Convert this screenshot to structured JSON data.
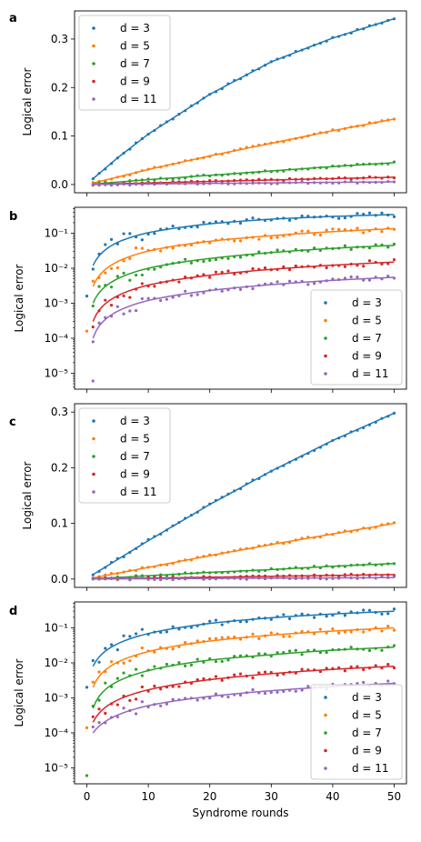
{
  "chart_data": [
    {
      "panel": "a",
      "type": "scatter",
      "xlabel": "",
      "ylabel": "Logical error",
      "yscale": "linear",
      "xlim": [
        -2,
        52
      ],
      "ylim": [
        -0.017,
        0.358
      ],
      "yticks": [
        0.0,
        0.1,
        0.2,
        0.3
      ],
      "yticklabels": [
        "0.0",
        "0.1",
        "0.2",
        "0.3"
      ],
      "xticks": [
        0,
        10,
        20,
        30,
        40,
        50
      ],
      "xticklabels": [],
      "legend_loc": "upper-left",
      "points_shown": "markers with fitted curves",
      "series": [
        {
          "name": "d = 3",
          "color": "#1f77b4",
          "fit": {
            "x": [
              1,
              5,
              10,
              20,
              30,
              40,
              50
            ],
            "y": [
              0.012,
              0.055,
              0.104,
              0.186,
              0.253,
              0.302,
              0.342
            ]
          }
        },
        {
          "name": "d = 5",
          "color": "#ff7f0e",
          "fit": {
            "x": [
              1,
              10,
              20,
              30,
              40,
              50
            ],
            "y": [
              0.003,
              0.031,
              0.059,
              0.085,
              0.111,
              0.135
            ]
          }
        },
        {
          "name": "d = 7",
          "color": "#2ca02c",
          "fit": {
            "x": [
              1,
              10,
              20,
              30,
              40,
              50
            ],
            "y": [
              0.001,
              0.01,
              0.019,
              0.028,
              0.037,
              0.045
            ]
          }
        },
        {
          "name": "d = 9",
          "color": "#d62728",
          "fit": {
            "x": [
              1,
              10,
              20,
              30,
              40,
              50
            ],
            "y": [
              0.0003,
              0.0033,
              0.0063,
              0.0093,
              0.0122,
              0.015
            ]
          }
        },
        {
          "name": "d = 11",
          "color": "#9467bd",
          "fit": {
            "x": [
              1,
              10,
              20,
              30,
              40,
              50
            ],
            "y": [
              0.0001,
              0.0012,
              0.0023,
              0.0034,
              0.0045,
              0.0055
            ]
          }
        }
      ]
    },
    {
      "panel": "b",
      "type": "scatter",
      "xlabel": "",
      "ylabel": "Logical error",
      "yscale": "log",
      "xlim": [
        -2,
        52
      ],
      "ylim": [
        3.5e-06,
        0.55
      ],
      "yticks": [
        1e-05,
        0.0001,
        0.001,
        0.01,
        0.1
      ],
      "yticklabels": [
        "10⁻⁵",
        "10⁻⁴",
        "10⁻³",
        "10⁻²",
        "10⁻¹"
      ],
      "xticks": [
        0,
        10,
        20,
        30,
        40,
        50
      ],
      "xticklabels": [],
      "legend_loc": "lower-right",
      "points_shown": "markers with fitted curves",
      "series": [
        {
          "name": "d = 3",
          "color": "#1f77b4",
          "fit": {
            "x": [
              1,
              5,
              10,
              20,
              30,
              40,
              50
            ],
            "y": [
              0.012,
              0.055,
              0.104,
              0.186,
              0.253,
              0.302,
              0.342
            ]
          },
          "outliers": [
            {
              "x": 0,
              "y": 0.0016
            }
          ]
        },
        {
          "name": "d = 5",
          "color": "#ff7f0e",
          "fit": {
            "x": [
              1,
              10,
              20,
              30,
              40,
              50
            ],
            "y": [
              0.003,
              0.031,
              0.059,
              0.085,
              0.111,
              0.135
            ]
          },
          "outliers": [
            {
              "x": 0,
              "y": 0.00016
            }
          ]
        },
        {
          "name": "d = 7",
          "color": "#2ca02c",
          "fit": {
            "x": [
              1,
              10,
              20,
              30,
              40,
              50
            ],
            "y": [
              0.001,
              0.01,
              0.019,
              0.028,
              0.037,
              0.045
            ]
          }
        },
        {
          "name": "d = 9",
          "color": "#d62728",
          "fit": {
            "x": [
              1,
              10,
              20,
              30,
              40,
              50
            ],
            "y": [
              0.0003,
              0.0033,
              0.0063,
              0.0093,
              0.0122,
              0.015
            ]
          }
        },
        {
          "name": "d = 11",
          "color": "#9467bd",
          "fit": {
            "x": [
              1,
              10,
              20,
              30,
              40,
              50
            ],
            "y": [
              0.0001,
              0.0012,
              0.0023,
              0.0034,
              0.0045,
              0.0055
            ]
          },
          "outliers": [
            {
              "x": 1,
              "y": 6e-06
            }
          ]
        }
      ]
    },
    {
      "panel": "c",
      "type": "scatter",
      "xlabel": "",
      "ylabel": "Logical error",
      "yscale": "linear",
      "xlim": [
        -2,
        52
      ],
      "ylim": [
        -0.015,
        0.315
      ],
      "yticks": [
        0.0,
        0.1,
        0.2,
        0.3
      ],
      "yticklabels": [
        "0.0",
        "0.1",
        "0.2",
        "0.3"
      ],
      "xticks": [
        0,
        10,
        20,
        30,
        40,
        50
      ],
      "xticklabels": [],
      "legend_loc": "upper-left",
      "points_shown": "markers with fitted curves",
      "series": [
        {
          "name": "d = 3",
          "color": "#1f77b4",
          "fit": {
            "x": [
              1,
              10,
              20,
              30,
              40,
              50
            ],
            "y": [
              0.008,
              0.069,
              0.134,
              0.194,
              0.249,
              0.298
            ]
          }
        },
        {
          "name": "d = 5",
          "color": "#ff7f0e",
          "fit": {
            "x": [
              1,
              10,
              20,
              30,
              40,
              50
            ],
            "y": [
              0.002,
              0.021,
              0.042,
              0.062,
              0.081,
              0.1
            ]
          }
        },
        {
          "name": "d = 7",
          "color": "#2ca02c",
          "fit": {
            "x": [
              1,
              10,
              20,
              30,
              40,
              50
            ],
            "y": [
              0.0005,
              0.006,
              0.012,
              0.017,
              0.023,
              0.028
            ]
          }
        },
        {
          "name": "d = 9",
          "color": "#d62728",
          "fit": {
            "x": [
              1,
              10,
              20,
              30,
              40,
              50
            ],
            "y": [
              0.0002,
              0.0017,
              0.0033,
              0.0049,
              0.0065,
              0.008
            ]
          }
        },
        {
          "name": "d = 11",
          "color": "#9467bd",
          "fit": {
            "x": [
              1,
              10,
              20,
              30,
              40,
              50
            ],
            "y": [
              0.0001,
              0.0006,
              0.0011,
              0.0016,
              0.0021,
              0.0026
            ]
          }
        }
      ]
    },
    {
      "panel": "d",
      "type": "scatter",
      "xlabel": "Syndrome rounds",
      "ylabel": "Logical error",
      "yscale": "log",
      "xlim": [
        -2,
        52
      ],
      "ylim": [
        3.5e-06,
        0.55
      ],
      "yticks": [
        1e-05,
        0.0001,
        0.001,
        0.01,
        0.1
      ],
      "yticklabels": [
        "10⁻⁵",
        "10⁻⁴",
        "10⁻³",
        "10⁻²",
        "10⁻¹"
      ],
      "xticks": [
        0,
        10,
        20,
        30,
        40,
        50
      ],
      "xticklabels": [
        "0",
        "10",
        "20",
        "30",
        "40",
        "50"
      ],
      "legend_loc": "lower-right",
      "points_shown": "markers with fitted curves",
      "series": [
        {
          "name": "d = 3",
          "color": "#1f77b4",
          "fit": {
            "x": [
              1,
              10,
              20,
              30,
              40,
              50
            ],
            "y": [
              0.008,
              0.069,
              0.134,
              0.194,
              0.249,
              0.298
            ]
          },
          "outliers": [
            {
              "x": 0,
              "y": 0.002
            }
          ]
        },
        {
          "name": "d = 5",
          "color": "#ff7f0e",
          "fit": {
            "x": [
              1,
              10,
              20,
              30,
              40,
              50
            ],
            "y": [
              0.002,
              0.021,
              0.042,
              0.062,
              0.081,
              0.1
            ]
          },
          "outliers": [
            {
              "x": 0,
              "y": 0.00014
            }
          ]
        },
        {
          "name": "d = 7",
          "color": "#2ca02c",
          "fit": {
            "x": [
              1,
              10,
              20,
              30,
              40,
              50
            ],
            "y": [
              0.0005,
              0.006,
              0.012,
              0.017,
              0.023,
              0.028
            ]
          },
          "outliers": [
            {
              "x": 0,
              "y": 6e-06
            }
          ]
        },
        {
          "name": "d = 9",
          "color": "#d62728",
          "fit": {
            "x": [
              1,
              10,
              20,
              30,
              40,
              50
            ],
            "y": [
              0.0002,
              0.0017,
              0.0033,
              0.0049,
              0.0065,
              0.008
            ]
          }
        },
        {
          "name": "d = 11",
          "color": "#9467bd",
          "fit": {
            "x": [
              1,
              10,
              20,
              30,
              40,
              50
            ],
            "y": [
              0.0001,
              0.0006,
              0.0011,
              0.0016,
              0.0021,
              0.0026
            ]
          }
        }
      ]
    }
  ]
}
